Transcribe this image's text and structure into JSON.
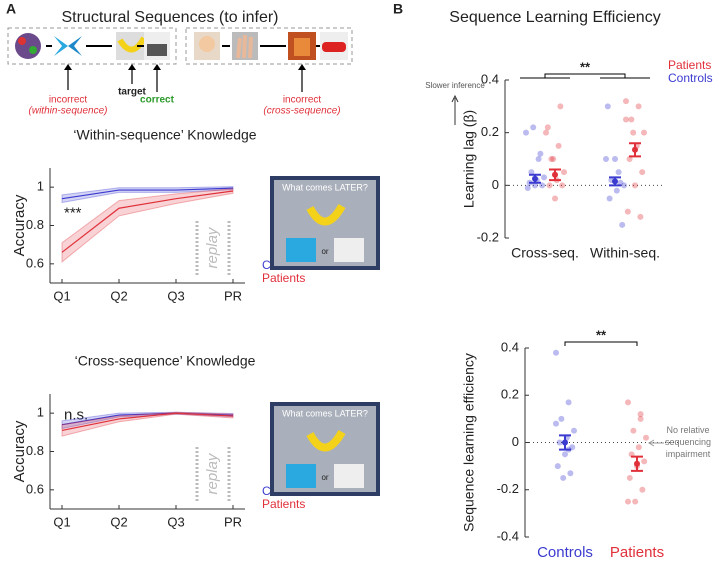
{
  "panel_a": {
    "letter": "A",
    "title": "Structural Sequences (to infer)",
    "labels": {
      "incorrect_within": "incorrect",
      "within_note": "(within-sequence)",
      "target": "target",
      "correct": "correct",
      "incorrect_cross": "incorrect",
      "cross_note": "(cross-sequence)"
    },
    "inset": {
      "question": "What comes LATER?",
      "or": "or"
    }
  },
  "panel_b": {
    "letter": "B",
    "title": "Sequence Learning Efficiency",
    "slower": "Slower inference"
  },
  "chart_data": [
    {
      "type": "line",
      "title": "‘Within-sequence’ Knowledge",
      "y_label": "Accuracy",
      "categories": [
        "Q1",
        "Q2",
        "Q3",
        "PR"
      ],
      "ylim": [
        0.5,
        1.1
      ],
      "yticks": [
        0.6,
        0.8,
        1
      ],
      "significance": "***",
      "replay_label": "replay",
      "series": [
        {
          "name": "Controls",
          "color": "#3b3bd0",
          "values": [
            0.94,
            0.985,
            0.985,
            0.995
          ],
          "errors": [
            0.02,
            0.012,
            0.012,
            0.008
          ]
        },
        {
          "name": "Patients",
          "color": "#e0303a",
          "values": [
            0.66,
            0.89,
            0.94,
            0.98
          ],
          "errors": [
            0.05,
            0.04,
            0.025,
            0.012
          ]
        }
      ]
    },
    {
      "type": "line",
      "title": "‘Cross-sequence’ Knowledge",
      "y_label": "Accuracy",
      "categories": [
        "Q1",
        "Q2",
        "Q3",
        "PR"
      ],
      "ylim": [
        0.5,
        1.1
      ],
      "yticks": [
        0.6,
        0.8,
        1
      ],
      "significance": "n.s.",
      "replay_label": "replay",
      "series": [
        {
          "name": "Controls",
          "color": "#3b3bd0",
          "values": [
            0.94,
            0.99,
            1.0,
            0.99
          ],
          "errors": [
            0.02,
            0.01,
            0.005,
            0.008
          ]
        },
        {
          "name": "Patients",
          "color": "#e0303a",
          "values": [
            0.91,
            0.97,
            1.0,
            0.985
          ],
          "errors": [
            0.03,
            0.015,
            0.005,
            0.01
          ]
        }
      ]
    },
    {
      "type": "dotplot",
      "y_label": "Learning lag (β)",
      "categories": [
        "Cross-seq.",
        "Within-seq."
      ],
      "ylim": [
        -0.2,
        0.4
      ],
      "yticks": [
        -0.2,
        0,
        0.2,
        0.4
      ],
      "significance": "**",
      "series": [
        {
          "name": "Patients",
          "color": "#e0303a",
          "values": [
            0.04,
            0.135
          ],
          "errors": [
            0.02,
            0.025
          ],
          "points": [
            [
              0.2,
              0.15,
              0.1,
              0.05,
              0.02,
              0,
              0,
              -0.05,
              0.22,
              0.3,
              0.1
            ],
            [
              0.32,
              0.3,
              0.25,
              0.2,
              0.15,
              0.1,
              0.05,
              0,
              -0.1,
              -0.12,
              0.2,
              0.25
            ]
          ]
        },
        {
          "name": "Controls",
          "color": "#3b3bd0",
          "values": [
            0.025,
            0.015
          ],
          "errors": [
            0.015,
            0.015
          ],
          "points": [
            [
              0.2,
              0.1,
              0.05,
              0.03,
              0.02,
              0.01,
              0,
              0,
              -0.01,
              0.12,
              0.22
            ],
            [
              0.1,
              0.05,
              0.02,
              0,
              -0.02,
              -0.05,
              -0.15,
              0.1,
              0.3,
              0.01
            ]
          ]
        }
      ]
    },
    {
      "type": "dotplot",
      "y_label": "Sequence learning efficiency",
      "categories": [
        "Controls",
        "Patients"
      ],
      "ylim": [
        -0.4,
        0.4
      ],
      "yticks": [
        -0.4,
        -0.2,
        0,
        0.2,
        0.4
      ],
      "significance": "**",
      "note": [
        "No relative",
        "sequencing",
        "impairment"
      ],
      "series": [
        {
          "name": "Efficiency",
          "colors": [
            "#3b3bd0",
            "#e0303a"
          ],
          "values": [
            0.0,
            -0.09
          ],
          "errors": [
            0.03,
            0.03
          ],
          "points": [
            [
              0.38,
              0.17,
              0.1,
              0.05,
              0.02,
              0,
              -0.02,
              -0.05,
              -0.1,
              -0.13,
              -0.15,
              0.08,
              -0.03
            ],
            [
              0.17,
              0.1,
              0.05,
              0.02,
              -0.02,
              -0.05,
              -0.08,
              -0.1,
              -0.15,
              -0.2,
              -0.25,
              -0.25,
              0.12
            ]
          ]
        }
      ]
    }
  ]
}
